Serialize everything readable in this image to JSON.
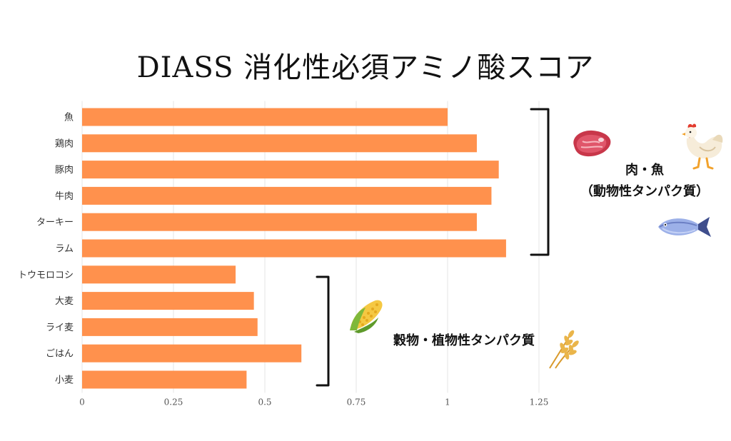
{
  "chart_data": {
    "type": "bar",
    "orientation": "horizontal",
    "title": "DIASS 消化性必須アミノ酸スコア",
    "categories": [
      "魚",
      "鶏肉",
      "豚肉",
      "牛肉",
      "ターキー",
      "ラム",
      "トウモロコシ",
      "大麦",
      "ライ麦",
      "ごはん",
      "小麦"
    ],
    "values": [
      1.0,
      1.08,
      1.14,
      1.12,
      1.08,
      1.16,
      0.42,
      0.47,
      0.48,
      0.6,
      0.45
    ],
    "xlim": [
      0,
      1.25
    ],
    "x_ticks": [
      "0",
      "0.25",
      "0.5",
      "0.75",
      "1",
      "1.25"
    ],
    "grid": true,
    "bar_color": "#FF914D",
    "annotations": {
      "animal_line1": "肉・魚",
      "animal_line2": "（動物性タンパク質）",
      "plant": "穀物・植物性タンパク質"
    },
    "icons": [
      "meat-icon",
      "chicken-icon",
      "fish-icon",
      "corn-icon",
      "wheat-icon"
    ]
  }
}
